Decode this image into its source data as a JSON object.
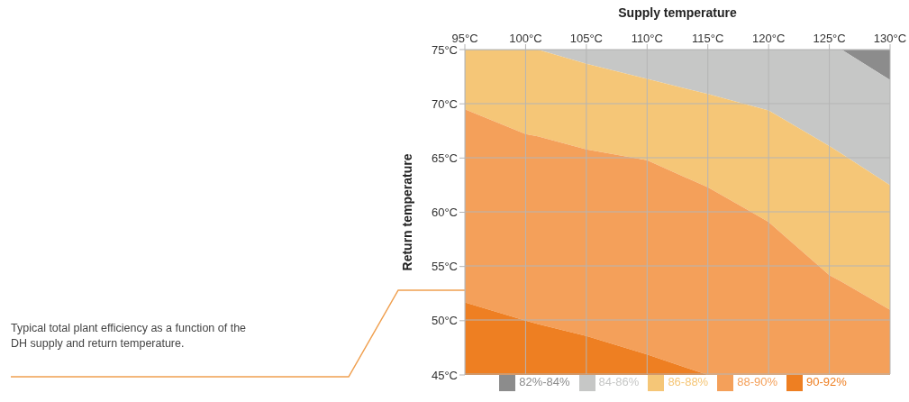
{
  "chart_data": {
    "type": "area",
    "xlabel": "Supply temperature",
    "ylabel": "Return temperature",
    "annotations": [
      "Typical total plant efficiency as a function of the DH supply and return temperature."
    ],
    "x": [
      95,
      100,
      101,
      105,
      110,
      115,
      118,
      120,
      125,
      126,
      130
    ],
    "xlim": [
      95,
      130
    ],
    "ylim": [
      45,
      75
    ],
    "xticks": [
      {
        "value": 95,
        "label": "95°C"
      },
      {
        "value": 100,
        "label": "100°C"
      },
      {
        "value": 105,
        "label": "105°C"
      },
      {
        "value": 110,
        "label": "110°C"
      },
      {
        "value": 115,
        "label": "115°C"
      },
      {
        "value": 120,
        "label": "120°C"
      },
      {
        "value": 125,
        "label": "125°C"
      },
      {
        "value": 130,
        "label": "130°C"
      }
    ],
    "yticks": [
      {
        "value": 45,
        "label": "45°C"
      },
      {
        "value": 50,
        "label": "50°C"
      },
      {
        "value": 55,
        "label": "55°C"
      },
      {
        "value": 60,
        "label": "60°C"
      },
      {
        "value": 65,
        "label": "65°C"
      },
      {
        "value": 70,
        "label": "70°C"
      },
      {
        "value": 75,
        "label": "75°C"
      }
    ],
    "series": [
      {
        "name": "82%-84%",
        "color": "#8c8c8c",
        "values": [
          null,
          null,
          null,
          null,
          null,
          null,
          null,
          null,
          null,
          75,
          75
        ]
      },
      {
        "name": "84-86%",
        "color": "#c6c7c6",
        "values": [
          null,
          null,
          75,
          75,
          75,
          75,
          75,
          75,
          75,
          75,
          72.2
        ]
      },
      {
        "name": "86-88%",
        "color": "#f5c677",
        "values": [
          75,
          75,
          75,
          73.7,
          72.3,
          70.9,
          70,
          69.4,
          66.1,
          65.4,
          62.5
        ]
      },
      {
        "name": "88-90%",
        "color": "#f4a05a",
        "values": [
          69.5,
          67.2,
          67,
          65.8,
          64.8,
          62.3,
          60.4,
          59.1,
          54.2,
          53.6,
          51
        ]
      },
      {
        "name": "90-92%",
        "color": "#ee7f22",
        "values": [
          51.7,
          50,
          49.7,
          48.6,
          46.9,
          45,
          null,
          null,
          null,
          null,
          null
        ]
      }
    ],
    "grid": true,
    "legend": "bottom"
  }
}
